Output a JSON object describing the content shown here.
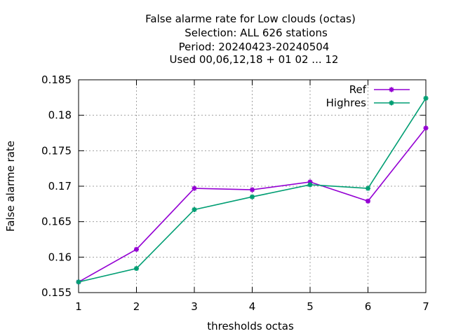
{
  "chart_data": {
    "type": "line",
    "title_lines": [
      "False alarme rate  for Low clouds (octas)",
      "Selection: ALL    626 stations",
      "Period: 20240423-20240504",
      "Used  00,06,12,18 + 01 02 ... 12"
    ],
    "xlabel": "thresholds octas",
    "ylabel": "False alarme rate",
    "x": [
      1,
      2,
      3,
      4,
      5,
      6,
      7
    ],
    "xlim": [
      1,
      7
    ],
    "ylim": [
      0.155,
      0.185
    ],
    "x_ticks": [
      "1",
      "2",
      "3",
      "4",
      "5",
      "6",
      "7"
    ],
    "y_ticks": [
      "0.155",
      "0.16",
      "0.165",
      "0.17",
      "0.175",
      "0.18",
      "0.185"
    ],
    "grid": true,
    "legend_position": "top-right",
    "series": [
      {
        "name": "Ref",
        "color": "#9400d3",
        "values": [
          0.1565,
          0.1611,
          0.1697,
          0.1695,
          0.1706,
          0.1679,
          0.1782
        ]
      },
      {
        "name": "Highres",
        "color": "#009e73",
        "values": [
          0.1565,
          0.1584,
          0.1667,
          0.1685,
          0.1702,
          0.1697,
          0.1824
        ]
      }
    ]
  }
}
